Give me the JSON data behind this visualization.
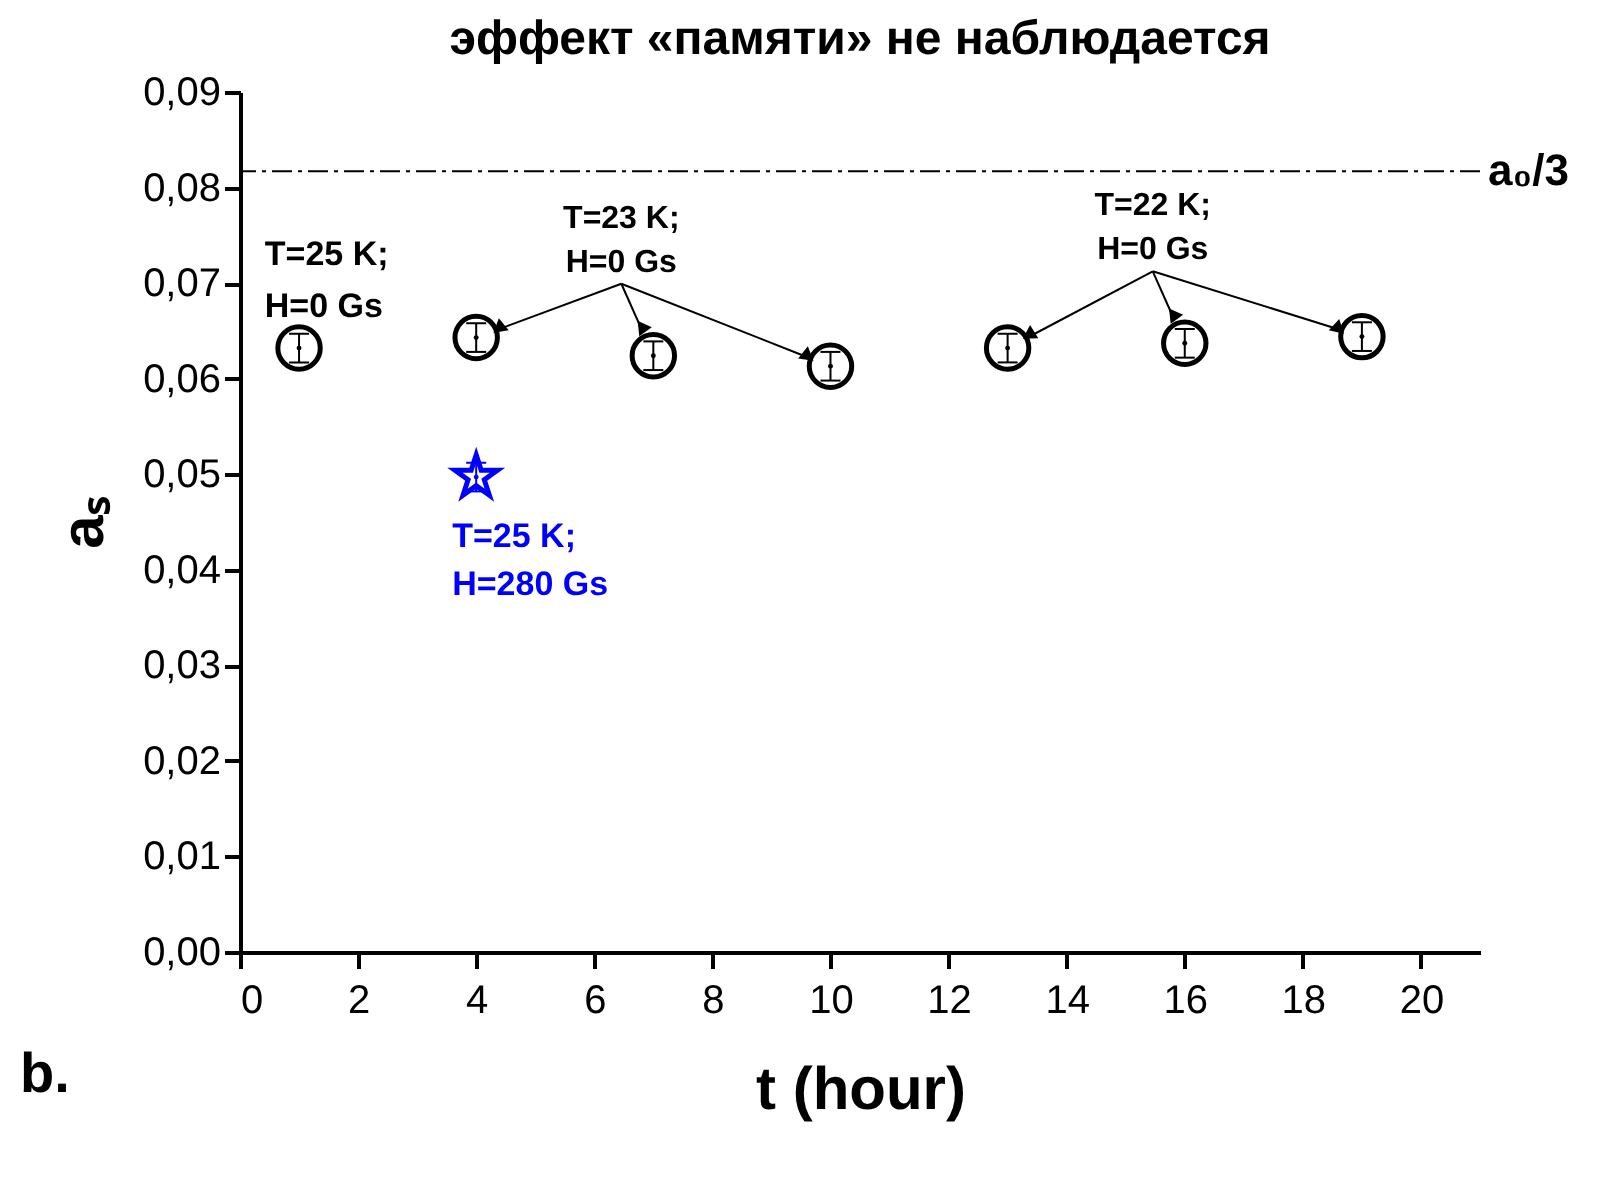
{
  "chart_data": {
    "type": "scatter",
    "title": "эффект «памяти» не наблюдается",
    "xlabel": "t (hour)",
    "ylabel": "aₛ",
    "series": [
      {
        "color": "#000000",
        "marker": "circle",
        "x": [
          1,
          4,
          7,
          10,
          13,
          16,
          19
        ],
        "values": [
          0.0632,
          0.0643,
          0.0624,
          0.0613,
          0.0632,
          0.0637,
          0.0644
        ],
        "errors": [
          0.0015,
          0.0015,
          0.0015,
          0.0015,
          0.0015,
          0.0015,
          0.0015
        ]
      },
      {
        "name": "T=25 K; H=280 Gs",
        "color": "#0000ff",
        "marker": "star",
        "x": [
          4
        ],
        "values": [
          0.0497
        ],
        "errors": [
          0.0015
        ]
      }
    ],
    "xlim": [
      0,
      21
    ],
    "xticks": [
      0,
      2,
      4,
      6,
      8,
      10,
      12,
      14,
      16,
      18,
      20
    ],
    "ylim": [
      0,
      0.09
    ],
    "yticks": [
      {
        "value": 0,
        "label": "0,00"
      },
      {
        "value": 0.01,
        "label": "0,01"
      },
      {
        "value": 0.02,
        "label": "0,02"
      },
      {
        "value": 0.03,
        "label": "0,03"
      },
      {
        "value": 0.04,
        "label": "0,04"
      },
      {
        "value": 0.05,
        "label": "0,05"
      },
      {
        "value": 0.06,
        "label": "0,06"
      },
      {
        "value": 0.07,
        "label": "0,07"
      },
      {
        "value": 0.08,
        "label": "0,08"
      },
      {
        "value": 0.09,
        "label": "0,09"
      }
    ],
    "ref_lines": [
      {
        "axis": "y",
        "value": 0.0817,
        "label": "a₀/3",
        "color": "#000000",
        "line_style": "dashdot"
      }
    ],
    "annotations": [
      "T=25 K; H=0 Gs",
      {
        "text": "T=23 K; H=0 Gs",
        "x": 7,
        "y": 0.0624
      },
      {
        "text": "T=22 K; H=0 Gs",
        "x": 16,
        "y": 0.0637
      },
      "b."
    ],
    "grid": false,
    "legend": false
  }
}
